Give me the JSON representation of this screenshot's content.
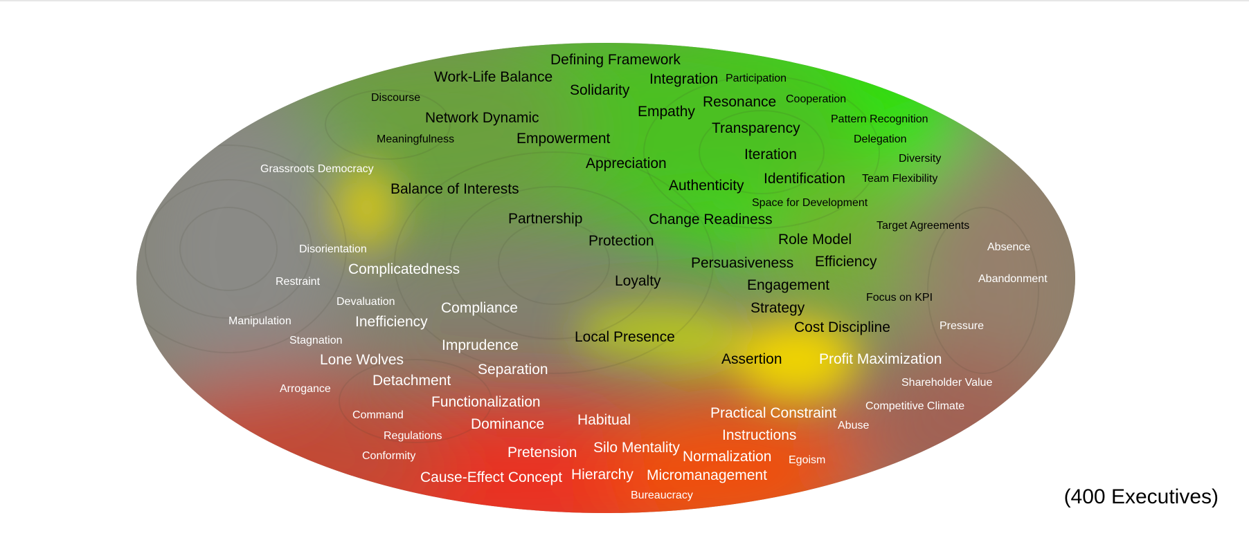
{
  "caption": "(400 Executives)",
  "colors": {
    "positive": "#22e000",
    "neutral": "#8a8a7e",
    "negative": "#e83020",
    "transition": "#f0d000",
    "dark_label": "#000000",
    "light_label": "#ffffff"
  },
  "terms": [
    "Defining Framework",
    "Work-Life Balance",
    "Solidarity",
    "Integration",
    "Participation",
    "Discourse",
    "Resonance",
    "Cooperation",
    "Empathy",
    "Network Dynamic",
    "Transparency",
    "Pattern Recognition",
    "Meaningfulness",
    "Empowerment",
    "Delegation",
    "Iteration",
    "Diversity",
    "Appreciation",
    "Grassroots Democracy",
    "Identification",
    "Team Flexibility",
    "Balance of Interests",
    "Authenticity",
    "Space for Development",
    "Partnership",
    "Change Readiness",
    "Target Agreements",
    "Protection",
    "Role Model",
    "Absence",
    "Disorientation",
    "Persuasiveness",
    "Efficiency",
    "Complicatedness",
    "Abandonment",
    "Restraint",
    "Loyalty",
    "Engagement",
    "Focus on KPI",
    "Devaluation",
    "Compliance",
    "Strategy",
    "Manipulation",
    "Inefficiency",
    "Cost Discipline",
    "Pressure",
    "Stagnation",
    "Local Presence",
    "Imprudence",
    "Lone Wolves",
    "Assertion",
    "Profit Maximization",
    "Separation",
    "Detachment",
    "Shareholder Value",
    "Arrogance",
    "Functionalization",
    "Competitive Climate",
    "Practical Constraint",
    "Command",
    "Habitual",
    "Dominance",
    "Abuse",
    "Regulations",
    "Instructions",
    "Silo Mentality",
    "Conformity",
    "Pretension",
    "Normalization",
    "Egoism",
    "Cause-Effect Concept",
    "Hierarchy",
    "Micromanagement",
    "Bureaucracy"
  ]
}
